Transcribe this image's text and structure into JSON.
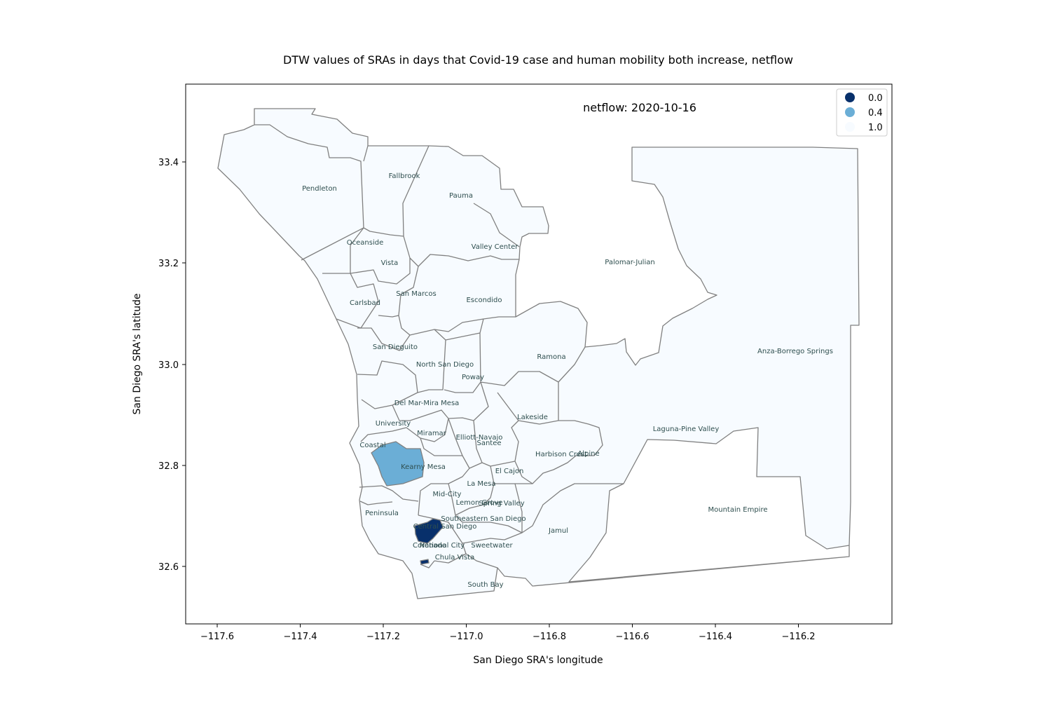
{
  "title": "DTW values of SRAs in days that Covid-19 case and human mobility both increase, netflow",
  "annotation": "netflow: 2020-10-16",
  "xlabel": "San Diego SRA's longitude",
  "ylabel": "San Diego SRA's latitude",
  "xticks": [
    "−117.6",
    "−117.4",
    "−117.2",
    "−117.0",
    "−116.8",
    "−116.6",
    "−116.4",
    "−116.2"
  ],
  "yticks": [
    "33.4",
    "33.2",
    "33.0",
    "32.8",
    "32.6"
  ],
  "legend": {
    "placement": "top-right",
    "entries": [
      {
        "label": "0.0",
        "color": "#08306b"
      },
      {
        "label": "0.4",
        "color": "#6baed6"
      },
      {
        "label": "1.0",
        "color": "#f7fbff"
      }
    ]
  },
  "colors": {
    "border": "#808080",
    "base_fill": "#f7fbff",
    "label_color": "#2f4f4f"
  },
  "sras": [
    {
      "name": "Pendleton",
      "value": 1.0
    },
    {
      "name": "Fallbrook",
      "value": 1.0
    },
    {
      "name": "Pauma",
      "value": 1.0
    },
    {
      "name": "Oceanside",
      "value": 1.0
    },
    {
      "name": "Valley Center",
      "value": 1.0
    },
    {
      "name": "Vista",
      "value": 1.0
    },
    {
      "name": "Palomar-Julian",
      "value": 1.0
    },
    {
      "name": "San Marcos",
      "value": 1.0
    },
    {
      "name": "Carlsbad",
      "value": 1.0
    },
    {
      "name": "Escondido",
      "value": 1.0
    },
    {
      "name": "Anza-Borrego Springs",
      "value": 1.0
    },
    {
      "name": "San Dieguito",
      "value": 1.0
    },
    {
      "name": "Ramona",
      "value": 1.0
    },
    {
      "name": "North San Diego",
      "value": 1.0
    },
    {
      "name": "Poway",
      "value": 1.0
    },
    {
      "name": "Del Mar-Mira Mesa",
      "value": 1.0
    },
    {
      "name": "Lakeside",
      "value": 1.0
    },
    {
      "name": "University",
      "value": 1.0
    },
    {
      "name": "Laguna-Pine Valley",
      "value": 1.0
    },
    {
      "name": "Miramar",
      "value": 1.0
    },
    {
      "name": "Elliott-Navajo",
      "value": 1.0
    },
    {
      "name": "Coastal",
      "value": 1.0
    },
    {
      "name": "Santee",
      "value": 1.0
    },
    {
      "name": "Harbison Crest",
      "value": 1.0
    },
    {
      "name": "Alpine",
      "value": 1.0
    },
    {
      "name": "Kearny Mesa",
      "value": 0.4
    },
    {
      "name": "El Cajon",
      "value": 1.0
    },
    {
      "name": "La Mesa",
      "value": 1.0
    },
    {
      "name": "Mid-City",
      "value": 1.0
    },
    {
      "name": "Lemon Grove",
      "value": 1.0
    },
    {
      "name": "Spring Valley",
      "value": 1.0
    },
    {
      "name": "Mountain Empire",
      "value": 1.0
    },
    {
      "name": "Peninsula",
      "value": 1.0
    },
    {
      "name": "Southeastern San Diego",
      "value": 1.0
    },
    {
      "name": "Central San Diego",
      "value": 0.0
    },
    {
      "name": "Jamul",
      "value": 1.0
    },
    {
      "name": "Coronado",
      "value": 1.0
    },
    {
      "name": "National City",
      "value": 1.0
    },
    {
      "name": "Sweetwater",
      "value": 1.0
    },
    {
      "name": "Chula Vista",
      "value": 1.0
    },
    {
      "name": "South Bay",
      "value": 1.0
    }
  ]
}
